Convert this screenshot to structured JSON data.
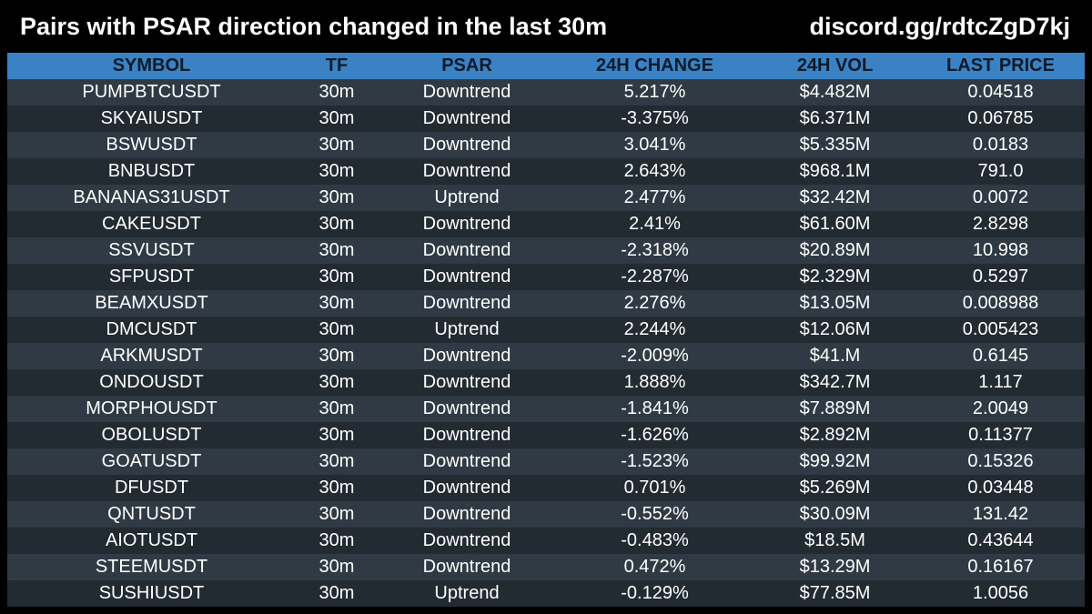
{
  "header": {
    "title": "Pairs with PSAR direction changed in the last 30m",
    "link": "discord.gg/rdtcZgD7kj"
  },
  "table": {
    "columns": [
      "SYMBOL",
      "TF",
      "PSAR",
      "24H CHANGE",
      "24H VOL",
      "LAST PRICE"
    ],
    "rows": [
      [
        "PUMPBTCUSDT",
        "30m",
        "Downtrend",
        "5.217%",
        "$4.482M",
        "0.04518"
      ],
      [
        "SKYAIUSDT",
        "30m",
        "Downtrend",
        "-3.375%",
        "$6.371M",
        "0.06785"
      ],
      [
        "BSWUSDT",
        "30m",
        "Downtrend",
        "3.041%",
        "$5.335M",
        "0.0183"
      ],
      [
        "BNBUSDT",
        "30m",
        "Downtrend",
        "2.643%",
        "$968.1M",
        "791.0"
      ],
      [
        "BANANAS31USDT",
        "30m",
        "Uptrend",
        "2.477%",
        "$32.42M",
        "0.0072"
      ],
      [
        "CAKEUSDT",
        "30m",
        "Downtrend",
        "2.41%",
        "$61.60M",
        "2.8298"
      ],
      [
        "SSVUSDT",
        "30m",
        "Downtrend",
        "-2.318%",
        "$20.89M",
        "10.998"
      ],
      [
        "SFPUSDT",
        "30m",
        "Downtrend",
        "-2.287%",
        "$2.329M",
        "0.5297"
      ],
      [
        "BEAMXUSDT",
        "30m",
        "Downtrend",
        "2.276%",
        "$13.05M",
        "0.008988"
      ],
      [
        "DMCUSDT",
        "30m",
        "Uptrend",
        "2.244%",
        "$12.06M",
        "0.005423"
      ],
      [
        "ARKMUSDT",
        "30m",
        "Downtrend",
        "-2.009%",
        "$41.M",
        "0.6145"
      ],
      [
        "ONDOUSDT",
        "30m",
        "Downtrend",
        "1.888%",
        "$342.7M",
        "1.117"
      ],
      [
        "MORPHOUSDT",
        "30m",
        "Downtrend",
        "-1.841%",
        "$7.889M",
        "2.0049"
      ],
      [
        "OBOLUSDT",
        "30m",
        "Downtrend",
        "-1.626%",
        "$2.892M",
        "0.11377"
      ],
      [
        "GOATUSDT",
        "30m",
        "Downtrend",
        "-1.523%",
        "$99.92M",
        "0.15326"
      ],
      [
        "DFUSDT",
        "30m",
        "Downtrend",
        "0.701%",
        "$5.269M",
        "0.03448"
      ],
      [
        "QNTUSDT",
        "30m",
        "Downtrend",
        "-0.552%",
        "$30.09M",
        "131.42"
      ],
      [
        "AIOTUSDT",
        "30m",
        "Downtrend",
        "-0.483%",
        "$18.5M",
        "0.43644"
      ],
      [
        "STEEMUSDT",
        "30m",
        "Downtrend",
        "0.472%",
        "$13.29M",
        "0.16167"
      ],
      [
        "SUSHIUSDT",
        "30m",
        "Uptrend",
        "-0.129%",
        "$77.85M",
        "1.0056"
      ]
    ]
  },
  "colors": {
    "background": "#000000",
    "header_row": "#3a82c4",
    "row_odd": "#222a32",
    "row_even": "#303a44",
    "text": "#ffffff"
  }
}
